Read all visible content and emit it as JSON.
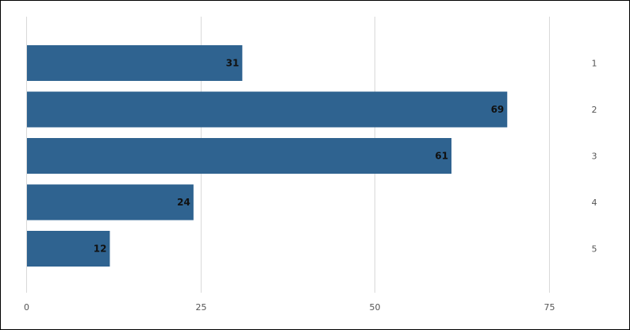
{
  "chart_data": {
    "type": "bar",
    "orientation": "horizontal",
    "categories": [
      "1",
      "2",
      "3",
      "4",
      "5"
    ],
    "values": [
      31,
      69,
      61,
      24,
      12
    ],
    "title": "",
    "xlabel": "",
    "ylabel": "",
    "xlim": [
      0,
      75
    ],
    "xticks": [
      0,
      25,
      50,
      75
    ],
    "grid": "vertical",
    "legend": "none",
    "category_label_position": "right",
    "bar_color": "#2f6390",
    "data_labels": "inside-end"
  }
}
